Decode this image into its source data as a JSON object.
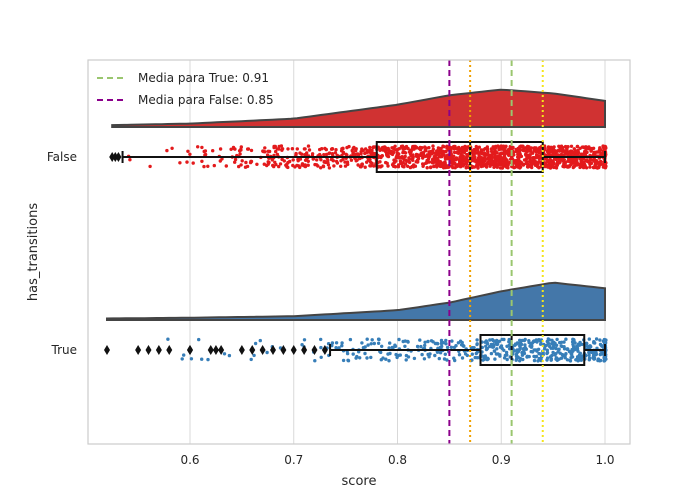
{
  "chart_data": {
    "type": "raincloud",
    "xlabel": "score",
    "ylabel": "has_transitions",
    "xlim": [
      0.5,
      1.02
    ],
    "xticks": [
      "0.6",
      "0.7",
      "0.8",
      "0.9",
      "1.0"
    ],
    "xtick_values": [
      0.6,
      0.7,
      0.8,
      0.9,
      1.0
    ],
    "grid": true,
    "legend_position": "top-left",
    "categories": [
      "False",
      "True"
    ],
    "series": [
      {
        "name": "False",
        "color": "#e31a1c",
        "cloud_color": "#d03232",
        "data_range": [
          0.525,
          1.0
        ],
        "box": {
          "whisker_low": 0.535,
          "q1": 0.78,
          "median": 0.87,
          "q3": 0.94,
          "whisker_high": 1.0
        },
        "outliers": [
          0.525,
          0.528,
          0.531
        ],
        "density": [
          [
            0.525,
            0.01
          ],
          [
            0.6,
            0.05
          ],
          [
            0.7,
            0.18
          ],
          [
            0.8,
            0.55
          ],
          [
            0.85,
            0.8
          ],
          [
            0.9,
            0.95
          ],
          [
            0.95,
            0.85
          ],
          [
            1.0,
            0.65
          ]
        ],
        "mean": 0.85,
        "line_color": "#8b008b"
      },
      {
        "name": "True",
        "color": "#377eb8",
        "cloud_color": "#4477a9",
        "data_range": [
          0.52,
          1.0
        ],
        "box": {
          "whisker_low": 0.735,
          "q1": 0.88,
          "median": 0.91,
          "q3": 0.98,
          "whisker_high": 1.0
        },
        "outliers": [
          0.52,
          0.55,
          0.56,
          0.57,
          0.58,
          0.6,
          0.6,
          0.62,
          0.625,
          0.63,
          0.65,
          0.66,
          0.67,
          0.68,
          0.69,
          0.7,
          0.71,
          0.72,
          0.73
        ],
        "density": [
          [
            0.52,
            0.0
          ],
          [
            0.6,
            0.02
          ],
          [
            0.7,
            0.06
          ],
          [
            0.8,
            0.22
          ],
          [
            0.85,
            0.42
          ],
          [
            0.9,
            0.72
          ],
          [
            0.95,
            0.95
          ],
          [
            1.0,
            0.8
          ]
        ],
        "mean": 0.91,
        "line_color": "#9ac66f"
      }
    ],
    "reference_lines": [
      {
        "x": 0.85,
        "color": "#8b008b",
        "style": "dashed",
        "label": "Media para False: 0.85"
      },
      {
        "x": 0.91,
        "color": "#9ac66f",
        "style": "dashed",
        "label": "Media para True: 0.91"
      },
      {
        "x": 0.87,
        "color": "#f0a000",
        "style": "dotted"
      },
      {
        "x": 0.94,
        "color": "#f5e51a",
        "style": "dotted"
      }
    ],
    "legend": [
      {
        "label": "Media para True: 0.91",
        "color": "#9ac66f"
      },
      {
        "label": "Media para False: 0.85",
        "color": "#8b008b"
      }
    ]
  }
}
